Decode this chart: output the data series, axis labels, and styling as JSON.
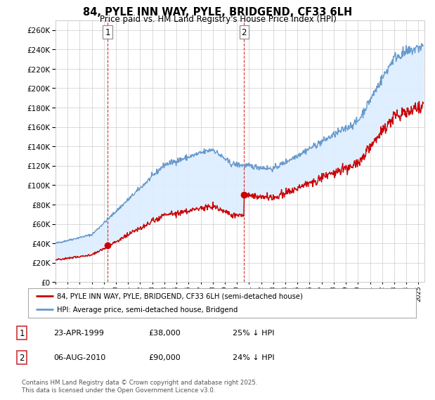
{
  "title": "84, PYLE INN WAY, PYLE, BRIDGEND, CF33 6LH",
  "subtitle": "Price paid vs. HM Land Registry's House Price Index (HPI)",
  "ylim": [
    0,
    270000
  ],
  "yticks": [
    0,
    20000,
    40000,
    60000,
    80000,
    100000,
    120000,
    140000,
    160000,
    180000,
    200000,
    220000,
    240000,
    260000
  ],
  "sale1_date": 1999.31,
  "sale1_price": 38000,
  "sale2_date": 2010.59,
  "sale2_price": 90000,
  "property_color": "#cc0000",
  "hpi_color": "#6699cc",
  "fill_color": "#ddeeff",
  "legend1": "84, PYLE INN WAY, PYLE, BRIDGEND, CF33 6LH (semi-detached house)",
  "legend2": "HPI: Average price, semi-detached house, Bridgend",
  "table_entries": [
    {
      "num": "1",
      "date": "23-APR-1999",
      "price": "£38,000",
      "hpi": "25% ↓ HPI"
    },
    {
      "num": "2",
      "date": "06-AUG-2010",
      "price": "£90,000",
      "hpi": "24% ↓ HPI"
    }
  ],
  "footnote": "Contains HM Land Registry data © Crown copyright and database right 2025.\nThis data is licensed under the Open Government Licence v3.0.",
  "background_color": "#ffffff",
  "grid_color": "#cccccc"
}
